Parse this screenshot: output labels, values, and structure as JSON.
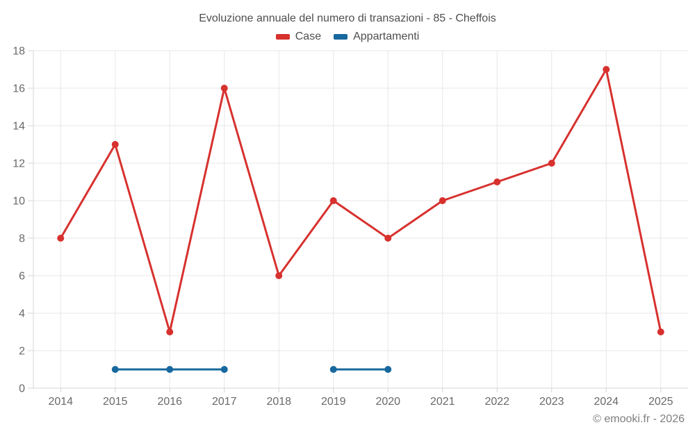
{
  "page": {
    "title": "Evoluzione annuale del numero di transazioni - 85 - Cheffois",
    "copyright": "© emooki.fr - 2026"
  },
  "legend": {
    "items": [
      {
        "label": "Case",
        "color": "#d7312e"
      },
      {
        "label": "Appartamenti",
        "color": "#17689e"
      }
    ]
  },
  "chart_data": {
    "type": "line",
    "title": "Evoluzione annuale del numero di transazioni - 85 - Cheffois",
    "xlabel": "",
    "ylabel": "",
    "categories": [
      "2014",
      "2015",
      "2016",
      "2017",
      "2018",
      "2019",
      "2020",
      "2021",
      "2022",
      "2023",
      "2024",
      "2025"
    ],
    "series": [
      {
        "name": "Case",
        "color": "#d7312e",
        "values": [
          8,
          13,
          3,
          16,
          6,
          10,
          8,
          10,
          11,
          12,
          17,
          3
        ]
      },
      {
        "name": "Appartamenti",
        "color": "#17689e",
        "values": [
          null,
          1,
          1,
          1,
          null,
          1,
          1,
          null,
          null,
          null,
          null,
          null
        ]
      }
    ],
    "ylim": [
      0,
      18
    ],
    "y_ticks": [
      0,
      2,
      4,
      6,
      8,
      10,
      12,
      14,
      16,
      18
    ],
    "grid": true,
    "legend_position": "top",
    "colors": {
      "grid": "#e7e7e7",
      "axis": "#d4d4d4",
      "tick_label": "#696969"
    }
  }
}
